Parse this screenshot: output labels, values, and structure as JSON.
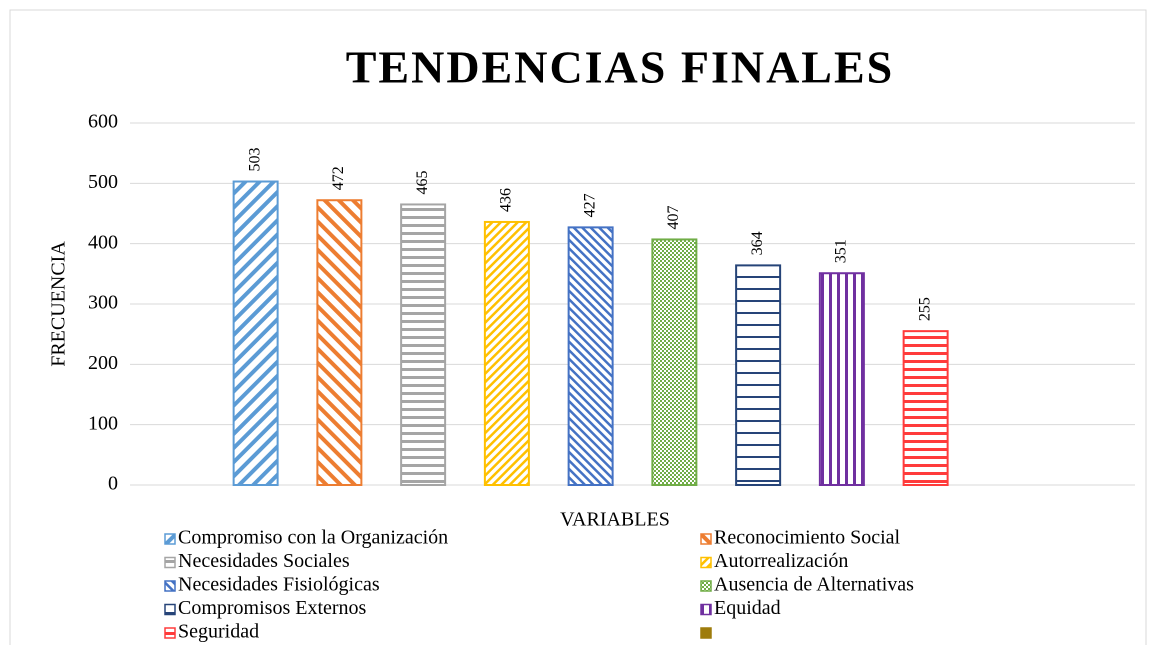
{
  "chart_data": {
    "type": "bar",
    "title": "TENDENCIAS FINALES",
    "x_label": "VARIABLES",
    "y_label": "FRECUENCIA",
    "ylim": [
      0,
      600
    ],
    "yticks": [
      0,
      100,
      200,
      300,
      400,
      500,
      600
    ],
    "grid": true,
    "series": [
      {
        "name": "Compromiso con la Organización",
        "color": "#5b9bd5",
        "pattern": "diag-down",
        "values": [
          503
        ]
      },
      {
        "name": "Reconocimiento Social",
        "color": "#ed7d31",
        "pattern": "diag-up",
        "values": [
          472
        ]
      },
      {
        "name": "Necesidades Sociales",
        "color": "#a5a5a5",
        "pattern": "horiz",
        "values": [
          465
        ]
      },
      {
        "name": "Autorrealización",
        "color": "#ffc000",
        "pattern": "diag-down-dense",
        "values": [
          436
        ]
      },
      {
        "name": "Necesidades Fisiológicas",
        "color": "#4472c4",
        "pattern": "diag-up-dense",
        "values": [
          427
        ]
      },
      {
        "name": "Ausencia de Alternativas",
        "color": "#70ad47",
        "pattern": "checker",
        "values": [
          407
        ]
      },
      {
        "name": "Compromisos Externos",
        "color": "#264478",
        "pattern": "horiz-wide",
        "values": [
          364
        ]
      },
      {
        "name": "Equidad",
        "color": "#7030a0",
        "pattern": "vert",
        "values": [
          351
        ]
      },
      {
        "name": "Seguridad",
        "color": "#ff3b3b",
        "pattern": "horiz",
        "values": [
          255
        ]
      },
      {
        "name": null,
        "color": "#9e7c0c",
        "pattern": "solid",
        "values": [
          null
        ]
      }
    ]
  }
}
